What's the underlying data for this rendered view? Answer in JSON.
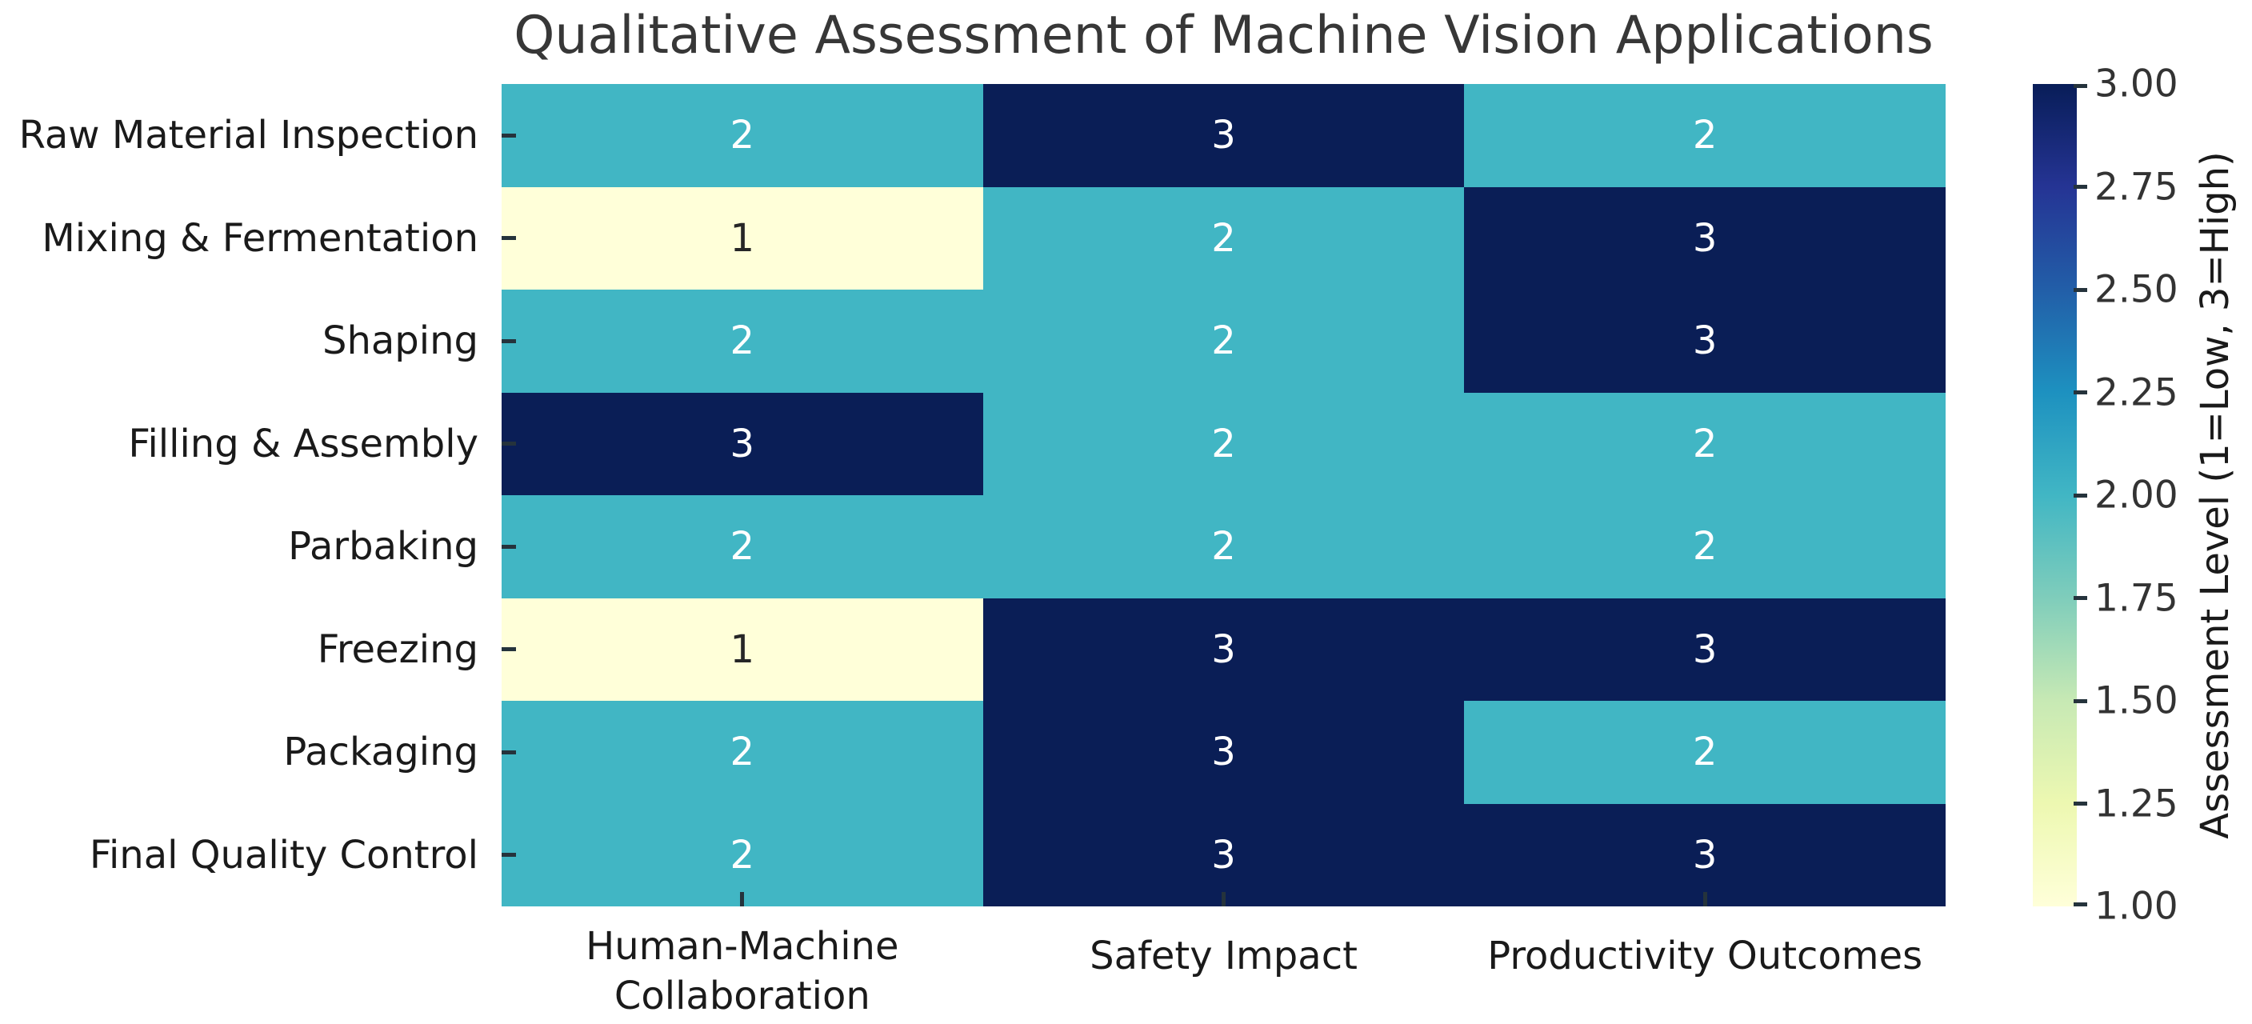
{
  "title": "Qualitative Assessment of Machine Vision Applications",
  "chart_data": {
    "type": "heatmap",
    "title": "Qualitative Assessment of Machine Vision Applications",
    "rows": [
      "Raw Material Inspection",
      "Mixing & Fermentation",
      "Shaping",
      "Filling & Assembly",
      "Parbaking",
      "Freezing",
      "Packaging",
      "Final Quality Control"
    ],
    "columns": [
      "Human-Machine Collaboration",
      "Safety Impact",
      "Productivity Outcomes"
    ],
    "column_label_lines": [
      [
        "Human-Machine",
        "Collaboration"
      ],
      [
        "Safety Impact"
      ],
      [
        "Productivity Outcomes"
      ]
    ],
    "values": [
      [
        2,
        3,
        2
      ],
      [
        1,
        2,
        3
      ],
      [
        2,
        2,
        3
      ],
      [
        3,
        2,
        2
      ],
      [
        2,
        2,
        2
      ],
      [
        1,
        3,
        3
      ],
      [
        2,
        3,
        2
      ],
      [
        2,
        3,
        3
      ]
    ],
    "value_range": [
      1,
      3
    ],
    "colormap": "YlGnBu",
    "value_colors": {
      "1": "#ffffd9",
      "2": "#41b6c4",
      "3": "#0a1e56"
    },
    "annotation_text_colors": {
      "1": "#262626",
      "2": "#ffffff",
      "3": "#ffffff"
    },
    "grid_on": false,
    "legend_position": "right-colorbar",
    "colorbar": {
      "label": "Assessment Level (1=Low, 3=High)",
      "tick_labels": [
        "3.00",
        "2.75",
        "2.50",
        "2.25",
        "2.00",
        "1.75",
        "1.50",
        "1.25",
        "1.00"
      ],
      "gradient_stops_bottom_to_top": [
        "#ffffd9",
        "#edf8b1",
        "#c7e9b4",
        "#7fcdbb",
        "#41b6c4",
        "#1d91c0",
        "#225ea8",
        "#253494",
        "#081d58"
      ]
    }
  }
}
